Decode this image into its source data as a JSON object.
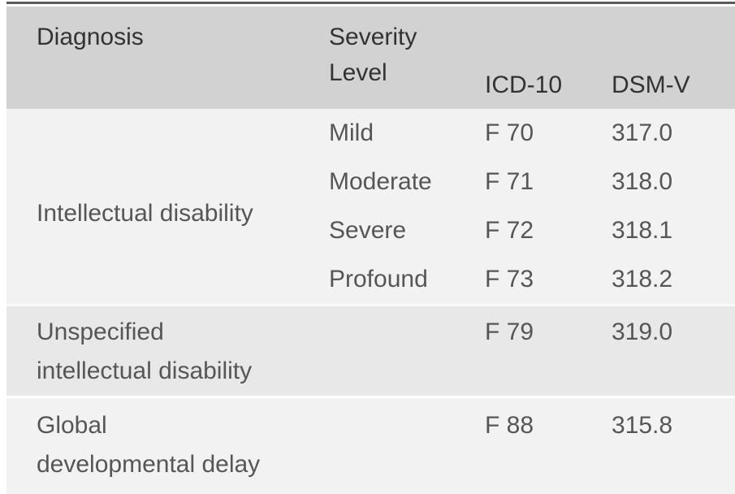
{
  "chart_data": {
    "type": "table",
    "title": "",
    "columns": [
      "Diagnosis",
      "Severity Level",
      "ICD-10",
      "DSM-V"
    ],
    "rows": [
      [
        "Intellectual disability",
        "Mild",
        "F 70",
        "317.0"
      ],
      [
        "Intellectual disability",
        "Moderate",
        "F 71",
        "318.0"
      ],
      [
        "Intellectual disability",
        "Severe",
        "F 72",
        "318.1"
      ],
      [
        "Intellectual disability",
        "Profound",
        "F 73",
        "318.2"
      ],
      [
        "Unspecified intellectual disability",
        "",
        "F 79",
        "319.0"
      ],
      [
        "Global developmental delay",
        "",
        "F 88",
        "315.8"
      ]
    ],
    "layout_hints": {
      "header_shaded": true,
      "zebra_bands_by_group": true,
      "grid": "off"
    }
  },
  "table": {
    "header": {
      "diagnosis": "Diagnosis",
      "severity_line1": "Severity",
      "severity_line2": "Level",
      "icd10": "ICD-10",
      "dsmv": "DSM-V"
    },
    "body": {
      "group1": {
        "diagnosis": "Intellectual disability",
        "rows": [
          {
            "severity": "Mild",
            "icd10": "F 70",
            "dsmv": "317.0"
          },
          {
            "severity": "Moderate",
            "icd10": "F 71",
            "dsmv": "318.0"
          },
          {
            "severity": "Severe",
            "icd10": "F 72",
            "dsmv": "318.1"
          },
          {
            "severity": "Profound",
            "icd10": "F 73",
            "dsmv": "318.2"
          }
        ]
      },
      "group2": {
        "diagnosis": "Unspecified intellectual disability",
        "diagnosis_line1": "Unspecified",
        "diagnosis_line2": "intellectual disability",
        "severity": "",
        "icd10": "F 79",
        "dsmv": "319.0"
      },
      "group3": {
        "diagnosis": "Global developmental delay",
        "diagnosis_line1": "Global",
        "diagnosis_line2": "developmental delay",
        "severity": "",
        "icd10": "F 88",
        "dsmv": "315.8"
      }
    }
  },
  "colors": {
    "top_rule": "#595a5c",
    "header_bg": "#d2d2d2",
    "light_row_bg": "#f2f2f2",
    "shaded_row_bg": "#e8e8e8",
    "header_text": "#333333",
    "body_text": "#565656",
    "row_separator": "#fbfbfb"
  }
}
